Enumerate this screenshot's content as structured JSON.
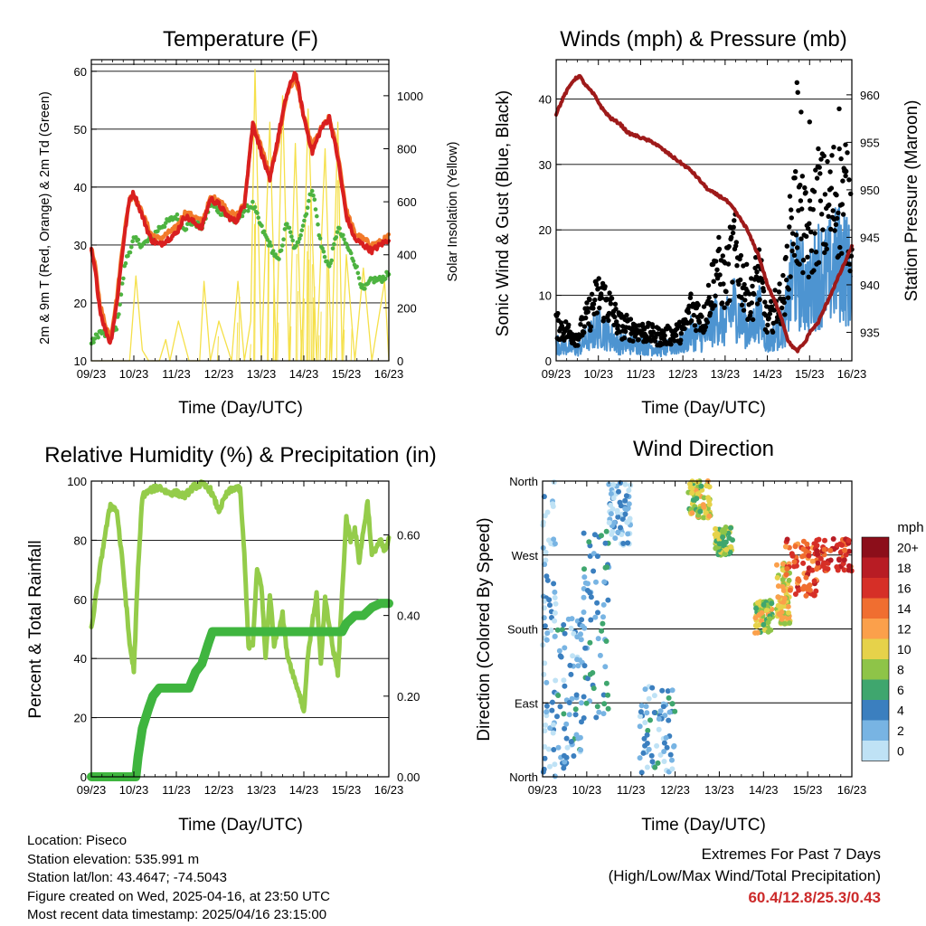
{
  "colors": {
    "temp2m": "#d91f1f",
    "temp9m": "#f27a2a",
    "dewpoint": "#4db340",
    "solar": "#f5e04a",
    "wind": "#4d94d1",
    "gust": "#000000",
    "pressure": "#9e1a1a",
    "rh": "#94cc4a",
    "precip": "#3fb53f"
  },
  "time_ticks": [
    "09/23",
    "10/23",
    "11/23",
    "12/23",
    "13/23",
    "14/23",
    "15/23",
    "16/23"
  ],
  "metadata": {
    "location": "Location: Piseco",
    "elevation": "Station elevation: 535.991 m",
    "latlon": "Station lat/lon: 43.4647; -74.5043",
    "created": "Figure created on Wed, 2025-04-16, at 23:50 UTC",
    "recent": "Most recent data timestamp: 2025/04/16 23:15:00"
  },
  "extremes": {
    "title": "Extremes For Past 7 Days",
    "subtitle": "(High/Low/Max Wind/Total Precipitation)",
    "values": "60.4/12.8/25.3/0.43"
  },
  "chart_data": [
    {
      "type": "line",
      "title": "Temperature (F)",
      "xlabel": "Time (Day/UTC)",
      "ylabel": "2m & 9m T (Red, Orange) & 2m Td (Green)",
      "y2label": "Solar Insolation (Yellow)",
      "xlim": [
        0,
        7
      ],
      "ylim": [
        10,
        62
      ],
      "y2lim": [
        0,
        1136
      ],
      "yticks": [
        10,
        20,
        30,
        40,
        50,
        60
      ],
      "y2ticks": [
        0,
        200,
        400,
        600,
        800,
        1000
      ],
      "series": [
        {
          "name": "2m T",
          "x": [
            0,
            0.1,
            0.2,
            0.3,
            0.45,
            0.6,
            0.75,
            0.9,
            1.0,
            1.2,
            1.4,
            1.6,
            1.8,
            2.0,
            2.2,
            2.4,
            2.6,
            2.8,
            3.0,
            3.2,
            3.4,
            3.6,
            3.8,
            4.0,
            4.2,
            4.4,
            4.6,
            4.8,
            5.0,
            5.2,
            5.4,
            5.6,
            5.8,
            6.0,
            6.2,
            6.4,
            6.6,
            6.8,
            7.0
          ],
          "y": [
            29,
            25,
            19,
            16,
            13,
            20,
            30,
            38,
            39,
            35,
            31,
            30,
            31,
            32,
            35,
            34,
            33,
            38,
            37,
            35,
            34,
            37,
            51,
            46,
            41,
            49,
            56,
            60,
            52,
            46,
            50,
            52,
            45,
            35,
            31,
            30,
            29,
            30,
            31
          ]
        },
        {
          "name": "9m T",
          "x": [
            0,
            0.1,
            0.2,
            0.3,
            0.45,
            0.6,
            0.75,
            0.9,
            1.0,
            1.2,
            1.4,
            1.6,
            1.8,
            2.0,
            2.2,
            2.4,
            2.6,
            2.8,
            3.0,
            3.2,
            3.4,
            3.6,
            3.8,
            4.0,
            4.2,
            4.4,
            4.6,
            4.8,
            5.0,
            5.2,
            5.4,
            5.6,
            5.8,
            6.0,
            6.2,
            6.4,
            6.6,
            6.8,
            7.0
          ],
          "y": [
            29.5,
            26,
            20,
            17,
            14,
            21,
            31,
            38,
            38.5,
            35.5,
            32,
            31,
            32,
            33,
            35.5,
            35,
            34,
            38,
            38,
            36,
            35,
            37,
            51,
            47,
            42,
            48,
            56,
            59,
            52,
            47,
            50,
            52,
            46,
            36,
            32,
            31,
            30,
            30.5,
            31.5
          ]
        },
        {
          "name": "2m Td",
          "x": [
            0,
            0.2,
            0.45,
            0.6,
            0.8,
            1.0,
            1.2,
            1.4,
            1.6,
            1.8,
            2.0,
            2.2,
            2.4,
            2.6,
            2.8,
            3.0,
            3.2,
            3.4,
            3.6,
            3.8,
            4.0,
            4.2,
            4.4,
            4.6,
            4.8,
            5.0,
            5.2,
            5.4,
            5.6,
            5.8,
            6.0,
            6.2,
            6.4,
            6.6,
            6.8,
            7.0
          ],
          "y": [
            13,
            15,
            14,
            16,
            27,
            31,
            30,
            31,
            33,
            34,
            35,
            33,
            34,
            33,
            37,
            36,
            35,
            34,
            36,
            37,
            33,
            30,
            27,
            34,
            29,
            34,
            40,
            30,
            26,
            33,
            30,
            27,
            22,
            24,
            24,
            25
          ]
        },
        {
          "name": "Solar Insolation",
          "axis": "y2",
          "x": [
            0,
            0.9,
            1.05,
            1.2,
            1.35,
            1.6,
            1.75,
            1.85,
            2.05,
            2.3,
            2.55,
            2.65,
            2.8,
            3.0,
            3.3,
            3.45,
            3.6,
            3.75,
            3.85,
            4.0,
            4.2,
            4.35,
            4.5,
            4.65,
            4.8,
            4.95,
            5.1,
            5.3,
            5.5,
            5.65,
            5.8,
            5.9,
            6.0,
            6.2,
            6.4,
            6.6,
            6.8,
            6.9,
            7.0
          ],
          "y": [
            0,
            0,
            320,
            40,
            0,
            0,
            80,
            0,
            150,
            0,
            0,
            300,
            0,
            150,
            0,
            300,
            0,
            150,
            1100,
            0,
            900,
            0,
            1000,
            0,
            820,
            0,
            950,
            0,
            800,
            0,
            900,
            0,
            400,
            0,
            350,
            0,
            200,
            300,
            0
          ]
        }
      ]
    },
    {
      "type": "line",
      "title": "Winds (mph) & Pressure (mb)",
      "xlabel": "Time (Day/UTC)",
      "ylabel": "Sonic Wind & Gust (Blue, Black)",
      "y2label": "Station Pressure (Maroon)",
      "xlim": [
        0,
        7
      ],
      "ylim": [
        0,
        46
      ],
      "y2lim": [
        932,
        963.7
      ],
      "yticks": [
        0,
        10,
        20,
        30,
        40
      ],
      "y2ticks": [
        935,
        940,
        945,
        950,
        955,
        960
      ],
      "series": [
        {
          "name": "Sonic Wind",
          "x": [
            0,
            0.5,
            1.0,
            1.2,
            1.5,
            2.0,
            2.5,
            3.0,
            3.2,
            3.5,
            3.8,
            4.0,
            4.2,
            4.4,
            4.6,
            4.8,
            5.0,
            5.2,
            5.4,
            5.6,
            5.8,
            6.0,
            6.2,
            6.4,
            6.6,
            6.8,
            7.0
          ],
          "y": [
            3,
            2,
            6,
            5,
            3,
            3,
            2,
            3,
            5,
            4,
            8,
            6,
            10,
            7,
            5,
            9,
            3,
            5,
            6,
            15,
            14,
            12,
            16,
            15,
            17,
            18,
            14
          ]
        },
        {
          "name": "Gust",
          "x": [
            0,
            0.5,
            1.0,
            1.2,
            1.5,
            2.0,
            2.5,
            3.0,
            3.2,
            3.5,
            3.8,
            4.0,
            4.2,
            4.4,
            4.6,
            4.8,
            5.0,
            5.2,
            5.4,
            5.6,
            5.8,
            6.0,
            6.2,
            6.4,
            6.6,
            6.8,
            7.0
          ],
          "y": [
            6,
            4,
            11,
            10,
            6,
            5,
            4,
            5,
            9,
            7,
            16,
            13,
            19,
            14,
            10,
            15,
            6,
            9,
            11,
            25,
            23,
            20,
            27,
            25,
            28,
            27,
            24
          ]
        },
        {
          "name": "Station Pressure",
          "axis": "y2",
          "x": [
            0,
            0.2,
            0.4,
            0.55,
            0.7,
            0.9,
            1.1,
            1.3,
            1.5,
            1.7,
            2.0,
            2.3,
            2.6,
            2.9,
            3.2,
            3.4,
            3.6,
            3.8,
            4.0,
            4.2,
            4.5,
            4.8,
            5.0,
            5.3,
            5.5,
            5.7,
            5.9,
            6.0,
            6.2,
            6.4,
            6.6,
            6.8,
            7.0
          ],
          "y": [
            958,
            960,
            961.5,
            962,
            961,
            960,
            958.5,
            957.5,
            957,
            956,
            955.5,
            955,
            954,
            953,
            952,
            951,
            950,
            949.5,
            949,
            948,
            946,
            943,
            940,
            937,
            934,
            933,
            934,
            935,
            936,
            938,
            940,
            942,
            944
          ]
        }
      ]
    },
    {
      "type": "line",
      "title": "Relative Humidity (%) & Precipitation (in)",
      "xlabel": "Time (Day/UTC)",
      "ylabel": "Percent & Total Rainfall",
      "xlim": [
        0,
        7
      ],
      "ylim": [
        0,
        100
      ],
      "y2lim": [
        0,
        0.7333
      ],
      "yticks": [
        0,
        20,
        40,
        60,
        80,
        100
      ],
      "y2ticks": [
        0.0,
        0.2,
        0.4,
        0.6
      ],
      "series": [
        {
          "name": "Relative Humidity",
          "x": [
            0,
            0.15,
            0.3,
            0.45,
            0.6,
            0.75,
            0.9,
            1.0,
            1.1,
            1.2,
            1.4,
            1.6,
            1.8,
            2.0,
            2.2,
            2.4,
            2.6,
            2.8,
            3.0,
            3.2,
            3.4,
            3.5,
            3.6,
            3.7,
            3.8,
            3.9,
            4.0,
            4.1,
            4.2,
            4.3,
            4.5,
            4.6,
            4.8,
            4.9,
            5.0,
            5.1,
            5.3,
            5.4,
            5.5,
            5.7,
            5.8,
            6.0,
            6.1,
            6.2,
            6.3,
            6.5,
            6.6,
            6.8,
            6.9,
            7.0
          ],
          "y": [
            50,
            65,
            80,
            92,
            90,
            70,
            45,
            36,
            70,
            95,
            97,
            98,
            96,
            96,
            95,
            98,
            99,
            97,
            90,
            96,
            98,
            97,
            75,
            44,
            45,
            70,
            65,
            40,
            62,
            45,
            55,
            42,
            32,
            28,
            22,
            42,
            62,
            38,
            60,
            42,
            35,
            88,
            80,
            84,
            73,
            93,
            75,
            80,
            76,
            80
          ]
        },
        {
          "name": "Total Precipitation",
          "axis": "y2",
          "x": [
            0,
            0.6,
            1.05,
            1.1,
            1.2,
            1.35,
            1.45,
            1.6,
            2.0,
            2.3,
            2.45,
            2.6,
            2.75,
            2.85,
            3.0,
            3.5,
            4.0,
            4.5,
            5.0,
            5.5,
            5.9,
            6.0,
            6.2,
            6.4,
            6.6,
            6.8,
            7.0
          ],
          "y": [
            0,
            0,
            0,
            0.05,
            0.12,
            0.17,
            0.2,
            0.22,
            0.22,
            0.22,
            0.26,
            0.28,
            0.33,
            0.36,
            0.36,
            0.36,
            0.36,
            0.36,
            0.36,
            0.36,
            0.36,
            0.38,
            0.4,
            0.4,
            0.42,
            0.43,
            0.43
          ]
        }
      ]
    },
    {
      "type": "scatter",
      "title": "Wind Direction",
      "xlabel": "Time (Day/UTC)",
      "ylabel": "Direction (Colored By Speed)",
      "xlim": [
        0,
        7
      ],
      "ylim": [
        0,
        360
      ],
      "ytick_labels": [
        "North",
        "East",
        "South",
        "West",
        "North"
      ],
      "yticks": [
        0,
        90,
        180,
        270,
        360
      ],
      "colorbar": {
        "title": "mph",
        "labels": [
          "20+",
          "18",
          "16",
          "14",
          "12",
          "10",
          "8",
          "6",
          "4",
          "2",
          "0"
        ],
        "colors": [
          "#8c0e1a",
          "#b81c24",
          "#d62f27",
          "#f06e30",
          "#fba04b",
          "#e6d24a",
          "#8ec448",
          "#3fa66e",
          "#3b7fbf",
          "#78b4e3",
          "#bfe2f5"
        ]
      },
      "clusters": [
        {
          "x": [
            0.0,
            0.3
          ],
          "dir": [
            0,
            360
          ],
          "speed": 2
        },
        {
          "x": [
            0.3,
            0.9
          ],
          "dir": [
            10,
            200
          ],
          "speed": 3
        },
        {
          "x": [
            0.9,
            1.5
          ],
          "dir": [
            60,
            300
          ],
          "speed": 4
        },
        {
          "x": [
            1.5,
            2.0
          ],
          "dir": [
            280,
            360
          ],
          "speed": 2
        },
        {
          "x": [
            2.2,
            3.0
          ],
          "dir": [
            5,
            110
          ],
          "speed": 3
        },
        {
          "x": [
            3.3,
            3.8
          ],
          "dir": [
            315,
            360
          ],
          "speed": 9
        },
        {
          "x": [
            3.9,
            4.3
          ],
          "dir": [
            270,
            305
          ],
          "speed": 8
        },
        {
          "x": [
            4.8,
            5.2
          ],
          "dir": [
            175,
            215
          ],
          "speed": 9
        },
        {
          "x": [
            5.3,
            5.6
          ],
          "dir": [
            185,
            260
          ],
          "speed": 10
        },
        {
          "x": [
            5.5,
            6.2
          ],
          "dir": [
            220,
            290
          ],
          "speed": 15
        },
        {
          "x": [
            6.2,
            7.0
          ],
          "dir": [
            250,
            290
          ],
          "speed": 16
        }
      ]
    }
  ]
}
